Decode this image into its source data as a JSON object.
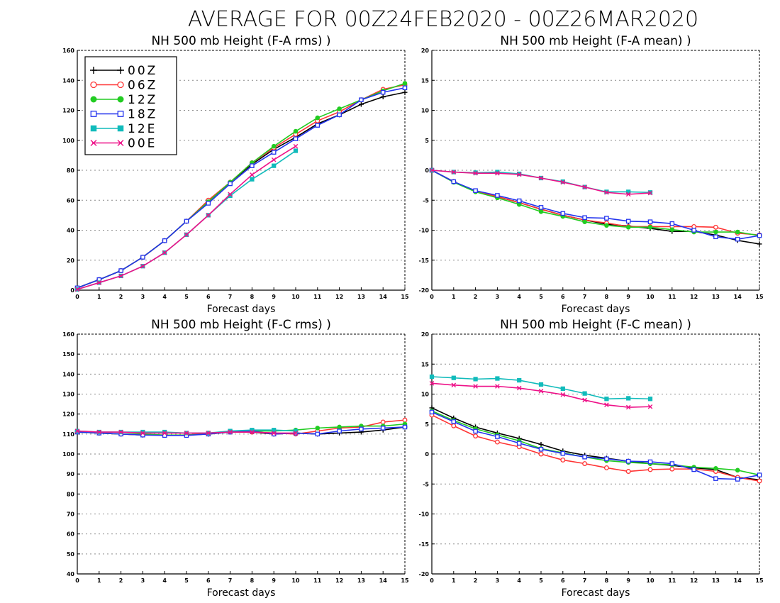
{
  "title": "AVERAGE FOR 00Z24FEB2020 - 00Z26MAR2020",
  "legend": [
    {
      "name": "00Z",
      "color": "#000000",
      "marker": "plus"
    },
    {
      "name": "06Z",
      "color": "#ff3333",
      "marker": "open-circle"
    },
    {
      "name": "12Z",
      "color": "#22cc22",
      "marker": "filled-circle"
    },
    {
      "name": "18Z",
      "color": "#2233ee",
      "marker": "open-square"
    },
    {
      "name": "12E",
      "color": "#11bbbb",
      "marker": "filled-square"
    },
    {
      "name": "00E",
      "color": "#ee1188",
      "marker": "x"
    }
  ],
  "chart_data": [
    {
      "type": "line",
      "title": "NH 500 mb Height (F-A rms) )",
      "xlabel": "Forecast days",
      "ylabel": "",
      "xlim": [
        0,
        15
      ],
      "ylim": [
        0,
        160
      ],
      "xticks": [
        0,
        1,
        2,
        3,
        4,
        5,
        6,
        7,
        8,
        9,
        10,
        11,
        12,
        13,
        14,
        15
      ],
      "yticks": [
        0,
        20,
        40,
        60,
        80,
        100,
        120,
        140,
        160
      ],
      "grid": "horizontal dotted",
      "legend_position": "top-left",
      "series": [
        {
          "name": "00Z",
          "x": [
            0,
            1,
            2,
            3,
            4,
            5,
            6,
            7,
            8,
            9,
            10,
            11,
            12,
            13,
            14,
            15
          ],
          "values": [
            1.5,
            7,
            13,
            22,
            33,
            46,
            59,
            72,
            84,
            94,
            102,
            111,
            117,
            124,
            129,
            132
          ]
        },
        {
          "name": "06Z",
          "x": [
            0,
            1,
            2,
            3,
            4,
            5,
            6,
            7,
            8,
            9,
            10,
            11,
            12,
            13,
            14,
            15
          ],
          "values": [
            1.5,
            7,
            13,
            22,
            33,
            46,
            60,
            72,
            85,
            95,
            104,
            113,
            119,
            127,
            134,
            137
          ]
        },
        {
          "name": "12Z",
          "x": [
            0,
            1,
            2,
            3,
            4,
            5,
            6,
            7,
            8,
            9,
            10,
            11,
            12,
            13,
            14,
            15
          ],
          "values": [
            1.5,
            7,
            13,
            22,
            33,
            46,
            59,
            72,
            85,
            96,
            106,
            115,
            121,
            127,
            133,
            138
          ]
        },
        {
          "name": "18Z",
          "x": [
            0,
            1,
            2,
            3,
            4,
            5,
            6,
            7,
            8,
            9,
            10,
            11,
            12,
            13,
            14,
            15
          ],
          "values": [
            1.5,
            7,
            13,
            22,
            33,
            46,
            58,
            71,
            83,
            92,
            101,
            110,
            117,
            127,
            132,
            135
          ]
        },
        {
          "name": "12E",
          "x": [
            0,
            1,
            2,
            3,
            4,
            5,
            6,
            7,
            8,
            9,
            10
          ],
          "values": [
            0.5,
            5,
            9.5,
            16,
            25,
            37,
            50,
            63,
            74,
            83,
            93
          ]
        },
        {
          "name": "00E",
          "x": [
            0,
            1,
            2,
            3,
            4,
            5,
            6,
            7,
            8,
            9,
            10
          ],
          "values": [
            0.5,
            5,
            9.5,
            16,
            25,
            37,
            50,
            64,
            77,
            87,
            96
          ]
        }
      ]
    },
    {
      "type": "line",
      "title": "NH 500 mb Height (F-A mean) )",
      "xlabel": "Forecast days",
      "ylabel": "",
      "xlim": [
        0,
        15
      ],
      "ylim": [
        -20,
        20
      ],
      "xticks": [
        0,
        1,
        2,
        3,
        4,
        5,
        6,
        7,
        8,
        9,
        10,
        11,
        12,
        13,
        14,
        15
      ],
      "yticks": [
        -20,
        -15,
        -10,
        -5,
        0,
        5,
        10,
        15,
        20
      ],
      "grid": "horizontal dotted",
      "series": [
        {
          "name": "00Z",
          "x": [
            0,
            1,
            2,
            3,
            4,
            5,
            6,
            7,
            8,
            9,
            10,
            11,
            12,
            13,
            14,
            15
          ],
          "values": [
            0,
            -1.9,
            -3.5,
            -4.4,
            -5.4,
            -6.5,
            -7.5,
            -8.3,
            -9,
            -9.3,
            -9.7,
            -10.2,
            -10.2,
            -10.8,
            -11.7,
            -12.3
          ]
        },
        {
          "name": "06Z",
          "x": [
            0,
            1,
            2,
            3,
            4,
            5,
            6,
            7,
            8,
            9,
            10,
            11,
            12,
            13,
            14,
            15
          ],
          "values": [
            0,
            -1.9,
            -3.5,
            -4.4,
            -5.4,
            -6.5,
            -7.5,
            -8.3,
            -8.8,
            -9.4,
            -9.4,
            -9.4,
            -9.4,
            -9.5,
            -10.5,
            -10.8
          ]
        },
        {
          "name": "12Z",
          "x": [
            0,
            1,
            2,
            3,
            4,
            5,
            6,
            7,
            8,
            9,
            10,
            11,
            12,
            13,
            14,
            15
          ],
          "values": [
            0,
            -2,
            -3.6,
            -4.6,
            -5.7,
            -6.9,
            -7.7,
            -8.6,
            -9.2,
            -9.5,
            -9.5,
            -9.9,
            -10.3,
            -10.3,
            -10.3,
            -10.9
          ]
        },
        {
          "name": "18Z",
          "x": [
            0,
            1,
            2,
            3,
            4,
            5,
            6,
            7,
            8,
            9,
            10,
            11,
            12,
            13,
            14,
            15
          ],
          "values": [
            0,
            -1.9,
            -3.4,
            -4.2,
            -5.1,
            -6.2,
            -7.2,
            -7.9,
            -8,
            -8.5,
            -8.6,
            -8.9,
            -10,
            -11.1,
            -11.5,
            -10.9
          ]
        },
        {
          "name": "12E",
          "x": [
            0,
            1,
            2,
            3,
            4,
            5,
            6,
            7,
            8,
            9,
            10
          ],
          "values": [
            0,
            -0.3,
            -0.4,
            -0.3,
            -0.6,
            -1.3,
            -1.9,
            -2.8,
            -3.6,
            -3.6,
            -3.7
          ]
        },
        {
          "name": "00E",
          "x": [
            0,
            1,
            2,
            3,
            4,
            5,
            6,
            7,
            8,
            9,
            10
          ],
          "values": [
            0,
            -0.3,
            -0.5,
            -0.5,
            -0.7,
            -1.3,
            -2,
            -2.8,
            -3.7,
            -4,
            -3.8
          ]
        }
      ]
    },
    {
      "type": "line",
      "title": "NH 500 mb Height (F-C rms) )",
      "xlabel": "Forecast days",
      "ylabel": "",
      "xlim": [
        0,
        15
      ],
      "ylim": [
        40,
        160
      ],
      "xticks": [
        0,
        1,
        2,
        3,
        4,
        5,
        6,
        7,
        8,
        9,
        10,
        11,
        12,
        13,
        14,
        15
      ],
      "yticks": [
        40,
        50,
        60,
        70,
        80,
        90,
        100,
        110,
        120,
        130,
        140,
        150,
        160
      ],
      "grid": "horizontal dotted",
      "series": [
        {
          "name": "00Z",
          "x": [
            0,
            1,
            2,
            3,
            4,
            5,
            6,
            7,
            8,
            9,
            10,
            11,
            12,
            13,
            14,
            15
          ],
          "values": [
            111,
            110.5,
            110,
            109.5,
            109.5,
            109.5,
            110,
            111,
            111,
            110,
            110.5,
            110,
            110.5,
            111,
            112,
            113.5
          ]
        },
        {
          "name": "06Z",
          "x": [
            0,
            1,
            2,
            3,
            4,
            5,
            6,
            7,
            8,
            9,
            10,
            11,
            12,
            13,
            14,
            15
          ],
          "values": [
            111,
            110.5,
            110,
            109.5,
            109.5,
            109.5,
            110.5,
            111,
            111,
            110.5,
            110,
            111.5,
            113,
            113.5,
            116,
            117
          ]
        },
        {
          "name": "12Z",
          "x": [
            0,
            1,
            2,
            3,
            4,
            5,
            6,
            7,
            8,
            9,
            10,
            11,
            12,
            13,
            14,
            15
          ],
          "values": [
            111,
            110.5,
            110,
            110,
            109.5,
            109.5,
            110,
            111,
            111.5,
            111.5,
            112,
            113,
            113.5,
            114,
            114,
            115
          ]
        },
        {
          "name": "18Z",
          "x": [
            0,
            1,
            2,
            3,
            4,
            5,
            6,
            7,
            8,
            9,
            10,
            11,
            12,
            13,
            14,
            15
          ],
          "values": [
            111,
            110.5,
            110,
            109.5,
            109.3,
            109.3,
            110,
            111,
            111.5,
            110,
            110.5,
            110,
            111.5,
            112.5,
            113,
            113.5
          ]
        },
        {
          "name": "12E",
          "x": [
            0,
            1,
            2,
            3,
            4,
            5,
            6,
            7,
            8,
            9,
            10
          ],
          "values": [
            111.5,
            111,
            111,
            111,
            111,
            110.5,
            110.5,
            111.5,
            112,
            112,
            111.5
          ]
        },
        {
          "name": "00E",
          "x": [
            0,
            1,
            2,
            3,
            4,
            5,
            6,
            7,
            8,
            9,
            10
          ],
          "values": [
            111.5,
            111,
            111,
            110.5,
            110.5,
            110.5,
            110.5,
            111,
            111,
            110.5,
            110.5
          ]
        }
      ]
    },
    {
      "type": "line",
      "title": "NH 500 mb Height (F-C mean) )",
      "xlabel": "Forecast days",
      "ylabel": "",
      "xlim": [
        0,
        15
      ],
      "ylim": [
        -20,
        20
      ],
      "xticks": [
        0,
        1,
        2,
        3,
        4,
        5,
        6,
        7,
        8,
        9,
        10,
        11,
        12,
        13,
        14,
        15
      ],
      "yticks": [
        -20,
        -15,
        -10,
        -5,
        0,
        5,
        10,
        15,
        20
      ],
      "grid": "horizontal dotted",
      "series": [
        {
          "name": "00Z",
          "x": [
            0,
            1,
            2,
            3,
            4,
            5,
            6,
            7,
            8,
            9,
            10,
            11,
            12,
            13,
            14,
            15
          ],
          "values": [
            7.7,
            6,
            4.5,
            3.5,
            2.6,
            1.6,
            0.5,
            -0.2,
            -0.7,
            -1.2,
            -1.6,
            -1.9,
            -2.3,
            -2.6,
            -3.9,
            -4.3
          ]
        },
        {
          "name": "06Z",
          "x": [
            0,
            1,
            2,
            3,
            4,
            5,
            6,
            7,
            8,
            9,
            10,
            11,
            12,
            13,
            14,
            15
          ],
          "values": [
            6.5,
            4.7,
            3,
            2,
            1.2,
            0,
            -1,
            -1.6,
            -2.3,
            -2.9,
            -2.6,
            -2.5,
            -2.5,
            -2.9,
            -3.9,
            -4.5
          ]
        },
        {
          "name": "12Z",
          "x": [
            0,
            1,
            2,
            3,
            4,
            5,
            6,
            7,
            8,
            9,
            10,
            11,
            12,
            13,
            14,
            15
          ],
          "values": [
            7.2,
            5.6,
            4.2,
            3.2,
            2.2,
            0.9,
            0.2,
            -0.5,
            -1.1,
            -1.4,
            -1.6,
            -1.8,
            -2.2,
            -2.4,
            -2.7,
            -3.5
          ]
        },
        {
          "name": "18Z",
          "x": [
            0,
            1,
            2,
            3,
            4,
            5,
            6,
            7,
            8,
            9,
            10,
            11,
            12,
            13,
            14,
            15
          ],
          "values": [
            7,
            5.4,
            3.8,
            2.9,
            1.8,
            0.8,
            0.1,
            -0.5,
            -0.8,
            -1.2,
            -1.3,
            -1.6,
            -2.6,
            -4.1,
            -4.2,
            -3.5
          ]
        },
        {
          "name": "12E",
          "x": [
            0,
            1,
            2,
            3,
            4,
            5,
            6,
            7,
            8,
            9,
            10
          ],
          "values": [
            12.9,
            12.7,
            12.5,
            12.6,
            12.3,
            11.6,
            10.9,
            10.1,
            9.2,
            9.3,
            9.2
          ]
        },
        {
          "name": "00E",
          "x": [
            0,
            1,
            2,
            3,
            4,
            5,
            6,
            7,
            8,
            9,
            10
          ],
          "values": [
            11.8,
            11.5,
            11.3,
            11.3,
            11,
            10.5,
            9.9,
            9,
            8.2,
            7.8,
            7.9
          ]
        }
      ]
    }
  ]
}
